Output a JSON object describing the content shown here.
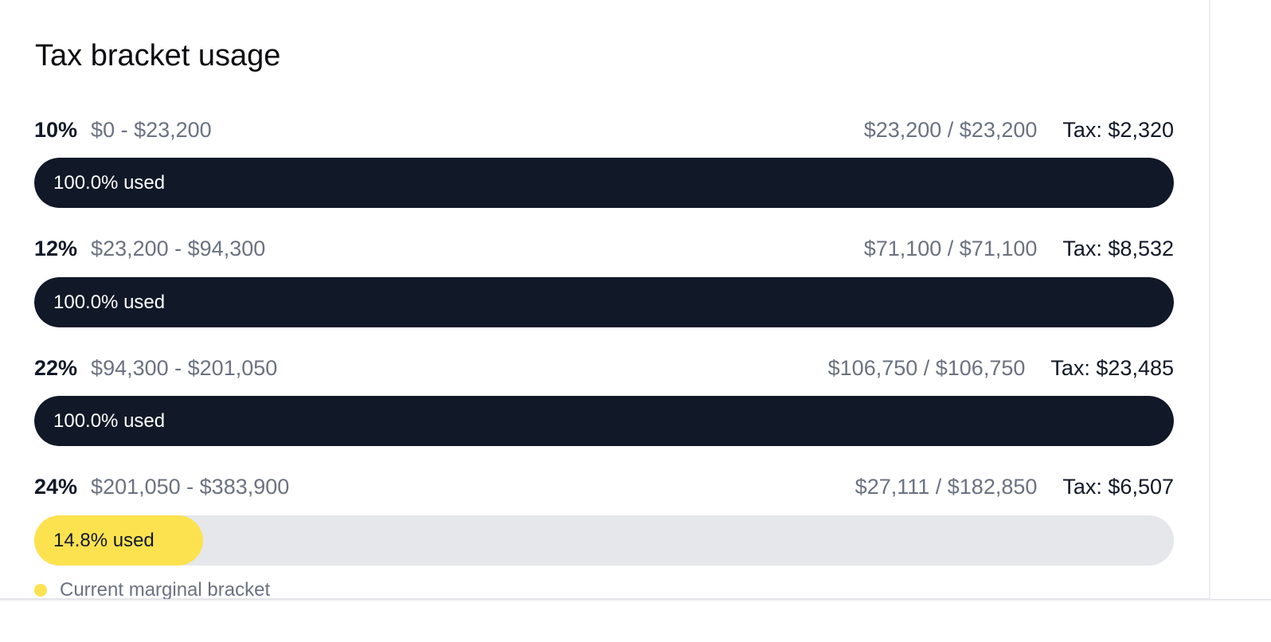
{
  "title": "Tax bracket usage",
  "brackets": [
    {
      "rate": "10%",
      "range": "$0 - $23,200",
      "usage": "$23,200 / $23,200",
      "tax": "Tax: $2,320",
      "fill": 100,
      "fill_label": "100.0% used",
      "current": false
    },
    {
      "rate": "12%",
      "range": "$23,200 - $94,300",
      "usage": "$71,100 / $71,100",
      "tax": "Tax: $8,532",
      "fill": 100,
      "fill_label": "100.0% used",
      "current": false
    },
    {
      "rate": "22%",
      "range": "$94,300 - $201,050",
      "usage": "$106,750 / $106,750",
      "tax": "Tax: $23,485",
      "fill": 100,
      "fill_label": "100.0% used",
      "current": false
    },
    {
      "rate": "24%",
      "range": "$201,050 - $383,900",
      "usage": "$27,111 / $182,850",
      "tax": "Tax: $6,507",
      "fill": 14.8,
      "fill_label": "14.8% used",
      "current": true
    }
  ],
  "legend": "Current marginal bracket"
}
